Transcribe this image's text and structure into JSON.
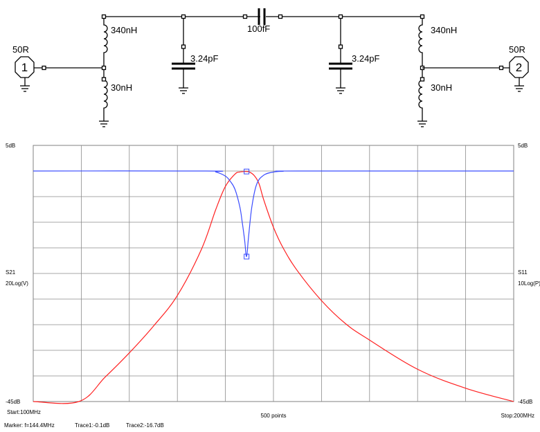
{
  "schematic": {
    "port1": {
      "number": "1",
      "impedance": "50R"
    },
    "port2": {
      "number": "2",
      "impedance": "50R"
    },
    "components": {
      "l1_top": "340nH",
      "l1_bottom": "30nH",
      "c1": "3.24pF",
      "c_series": "100fF",
      "c2": "3.24pF",
      "l2_top": "340nH",
      "l2_bottom": "30nH"
    }
  },
  "plot": {
    "left_axis": {
      "top": "5dB",
      "bottom": "-45dB",
      "param": "S21",
      "scale": "20Log(V)"
    },
    "right_axis": {
      "top": "5dB",
      "bottom": "-45dB",
      "param": "S11",
      "scale": "10Log(P)"
    },
    "start": "Start:100MHz",
    "points": "500 points",
    "stop": "Stop:200MHz",
    "marker": "Marker: f=144.4MHz",
    "trace1": "Trace1:-0.1dB",
    "trace2": "Trace2:-16.7dB"
  },
  "chart_data": {
    "type": "line",
    "title": "",
    "xlabel": "",
    "ylabel": "S21",
    "xlim": [
      100,
      200
    ],
    "ylim": [
      -45,
      5
    ],
    "grid": true,
    "colors": {
      "S21": "#ff2020",
      "S11": "#3a4cff"
    },
    "series": [
      {
        "name": "S21",
        "x": [
          100,
          109.5,
          115,
          120,
          125,
          130,
          135,
          138,
          140,
          142,
          143,
          144,
          144.4,
          145,
          146,
          147,
          148,
          150,
          152,
          155,
          160,
          165,
          170,
          180,
          190,
          200
        ],
        "values": [
          -45,
          -45,
          -40.2,
          -35.5,
          -30.3,
          -24.3,
          -15.3,
          -7.5,
          -3,
          -0.6,
          -0.2,
          -0.1,
          -0.1,
          -0.2,
          -0.9,
          -2.5,
          -5.7,
          -11,
          -15,
          -19.5,
          -25.3,
          -29.8,
          -33,
          -38.7,
          -42.4,
          -45
        ]
      },
      {
        "name": "S11",
        "x": [
          100,
          136,
          138,
          140,
          141,
          142,
          143,
          143.5,
          144,
          144.4,
          144.8,
          145.5,
          146.5,
          148,
          150,
          152,
          155,
          200
        ],
        "values": [
          0,
          0,
          -0.2,
          -1,
          -2,
          -3.6,
          -7,
          -10,
          -13.5,
          -16.7,
          -13,
          -7,
          -2.6,
          -0.8,
          -0.2,
          -0.05,
          0,
          0
        ]
      }
    ],
    "marker": {
      "x": 144.4,
      "trace1_db": -0.1,
      "trace2_db": -16.7
    }
  }
}
